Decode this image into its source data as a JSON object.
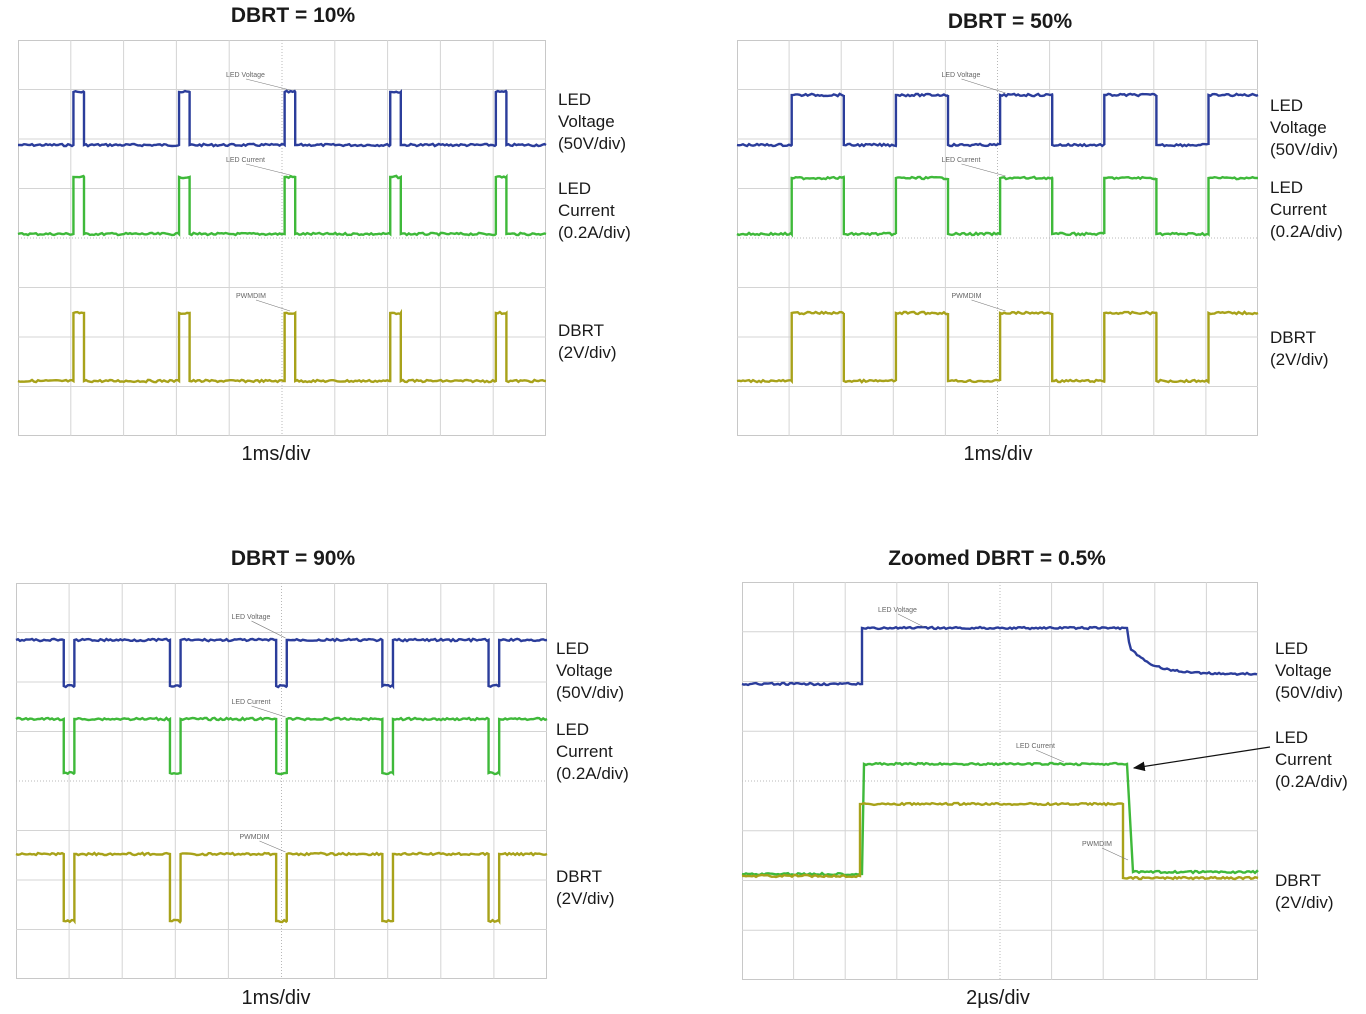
{
  "colors": {
    "voltage": "#2b3d9b",
    "current": "#3fb93a",
    "dbrt": "#a8a21a",
    "grid": "#d4d4d4",
    "frame": "#c8c8c8"
  },
  "chart_data": [
    {
      "type": "line",
      "title": "DBRT = 10%",
      "xlabel": "1ms/div",
      "x_divisions": 10,
      "y_divisions": 8,
      "duty_percent": 10,
      "series": [
        {
          "name": "LED Voltage",
          "trace_label": "LED Voltage",
          "scale_label": [
            "LED",
            "Voltage",
            "(50V/div)"
          ]
        },
        {
          "name": "LED Current",
          "trace_label": "LED Current",
          "scale_label": [
            "LED",
            "Current",
            "(0.2A/div)"
          ]
        },
        {
          "name": "DBRT",
          "trace_label": "PWMDIM",
          "scale_label": [
            "DBRT",
            "(2V/div)"
          ]
        }
      ]
    },
    {
      "type": "line",
      "title": "DBRT = 50%",
      "xlabel": "1ms/div",
      "x_divisions": 10,
      "y_divisions": 8,
      "duty_percent": 50,
      "series": [
        {
          "name": "LED Voltage",
          "trace_label": "LED Voltage",
          "scale_label": [
            "LED",
            "Voltage",
            "(50V/div)"
          ]
        },
        {
          "name": "LED Current",
          "trace_label": "LED Current",
          "scale_label": [
            "LED",
            "Current",
            "(0.2A/div)"
          ]
        },
        {
          "name": "DBRT",
          "trace_label": "PWMDIM",
          "scale_label": [
            "DBRT",
            "(2V/div)"
          ]
        }
      ]
    },
    {
      "type": "line",
      "title": "DBRT = 90%",
      "xlabel": "1ms/div",
      "x_divisions": 10,
      "y_divisions": 8,
      "duty_percent": 90,
      "series": [
        {
          "name": "LED Voltage",
          "trace_label": "LED Voltage",
          "scale_label": [
            "LED",
            "Voltage",
            "(50V/div)"
          ]
        },
        {
          "name": "LED Current",
          "trace_label": "LED Current",
          "scale_label": [
            "LED",
            "Current",
            "(0.2A/div)"
          ]
        },
        {
          "name": "DBRT",
          "trace_label": "PWMDIM",
          "scale_label": [
            "DBRT",
            "(2V/div)"
          ]
        }
      ]
    },
    {
      "type": "line",
      "title": "Zoomed DBRT = 0.5%",
      "xlabel": "2µs/div",
      "x_divisions": 10,
      "y_divisions": 8,
      "duty_percent": 0.5,
      "series": [
        {
          "name": "LED Voltage",
          "trace_label": "LED Voltage",
          "scale_label": [
            "LED",
            "Voltage",
            "(50V/div)"
          ]
        },
        {
          "name": "LED Current",
          "trace_label": "LED Current",
          "scale_label": [
            "LED",
            "Current",
            "(0.2A/div)"
          ]
        },
        {
          "name": "DBRT",
          "trace_label": "PWMDIM",
          "scale_label": [
            "DBRT",
            "(2V/div)"
          ]
        }
      ]
    }
  ]
}
